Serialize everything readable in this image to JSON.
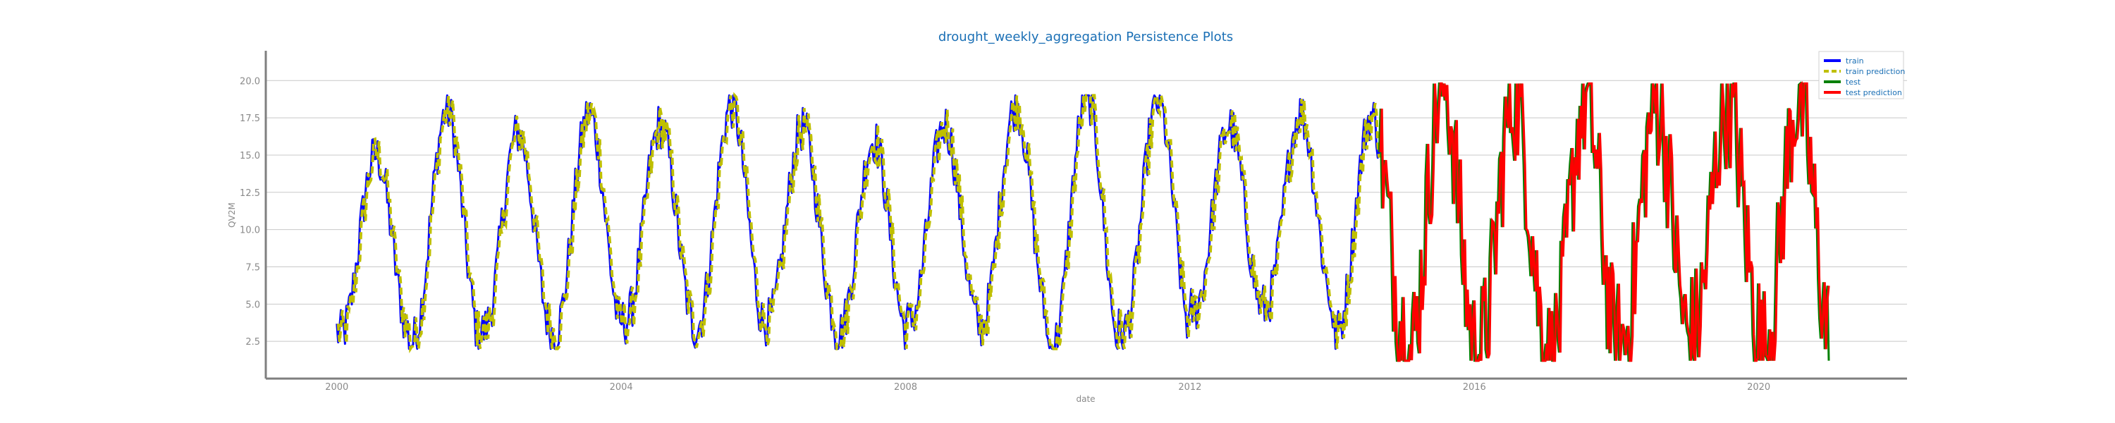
{
  "chart_data": {
    "type": "line",
    "title": "drought_weekly_aggregation Persistence Plots",
    "xlabel": "date",
    "ylabel": "QV2M",
    "x_range": [
      "1999-01-01",
      "2022-02-01"
    ],
    "ylim": [
      0,
      22
    ],
    "yticks": [
      2.5,
      5.0,
      7.5,
      10.0,
      12.5,
      15.0,
      17.5,
      20.0
    ],
    "ytick_labels": [
      "2.5",
      "5.0",
      "7.5",
      "10.0",
      "12.5",
      "15.0",
      "17.5",
      "20.0"
    ],
    "xticks": [
      "2000-01-01",
      "2004-01-01",
      "2008-01-01",
      "2012-01-01",
      "2016-01-01",
      "2020-01-01"
    ],
    "xtick_labels": [
      "2000",
      "2004",
      "2008",
      "2012",
      "2016",
      "2020"
    ],
    "grid": "horizontal",
    "legend_position": "top-right",
    "series": [
      {
        "name": "train",
        "color": "#0000ff",
        "style": "solid",
        "x_start": "2000-01-01",
        "x_end": "2014-09-01"
      },
      {
        "name": "train prediction",
        "color": "#bfbf00",
        "style": "dashed",
        "x_start": "2000-01-08",
        "x_end": "2014-09-01"
      },
      {
        "name": "test",
        "color": "#008000",
        "style": "solid",
        "x_start": "2014-09-01",
        "x_end": "2021-01-01"
      },
      {
        "name": "test prediction",
        "color": "#ff0000",
        "style": "solid",
        "x_start": "2014-09-08",
        "x_end": "2021-01-01"
      }
    ],
    "seasonal_pattern": {
      "yearly_peaks": [
        {
          "year": 2000,
          "peak": 15.0,
          "trough": 3.0
        },
        {
          "year": 2001,
          "peak": 18.0,
          "trough": 2.5
        },
        {
          "year": 2002,
          "peak": 16.5,
          "trough": 3.2
        },
        {
          "year": 2003,
          "peak": 17.8,
          "trough": 3.0
        },
        {
          "year": 2004,
          "peak": 17.0,
          "trough": 3.8
        },
        {
          "year": 2005,
          "peak": 18.3,
          "trough": 3.4
        },
        {
          "year": 2006,
          "peak": 16.8,
          "trough": 3.8
        },
        {
          "year": 2007,
          "peak": 16.0,
          "trough": 3.0
        },
        {
          "year": 2008,
          "peak": 17.0,
          "trough": 3.8
        },
        {
          "year": 2009,
          "peak": 18.3,
          "trough": 3.5
        },
        {
          "year": 2010,
          "peak": 19.0,
          "trough": 2.0
        },
        {
          "year": 2011,
          "peak": 18.5,
          "trough": 3.0
        },
        {
          "year": 2012,
          "peak": 17.0,
          "trough": 4.6
        },
        {
          "year": 2013,
          "peak": 17.8,
          "trough": 4.8
        },
        {
          "year": 2014,
          "peak": 17.6,
          "trough": 3.0
        },
        {
          "year": 2015,
          "peak": 19.8,
          "trough": 1.5
        },
        {
          "year": 2016,
          "peak": 18.8,
          "trough": 2.0
        },
        {
          "year": 2017,
          "peak": 18.6,
          "trough": 1.3
        },
        {
          "year": 2018,
          "peak": 18.4,
          "trough": 2.3
        },
        {
          "year": 2019,
          "peak": 18.6,
          "trough": 3.0
        },
        {
          "year": 2020,
          "peak": 18.7,
          "trough": 2.0
        }
      ]
    }
  }
}
